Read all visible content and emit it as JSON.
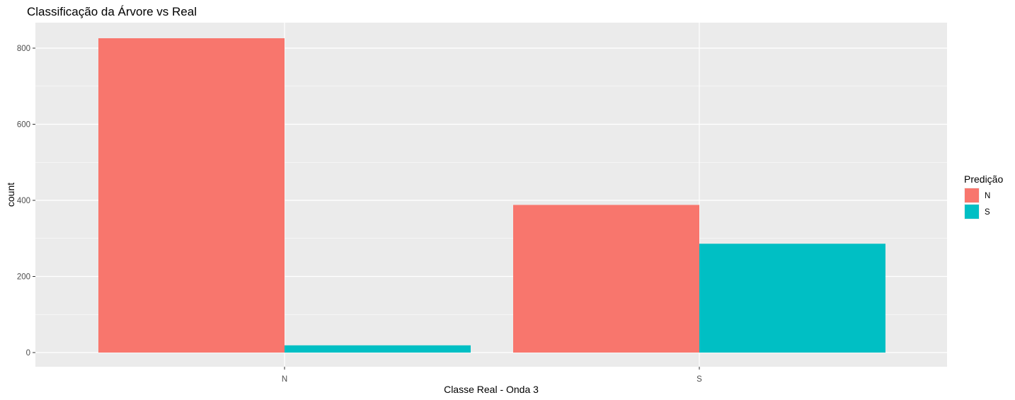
{
  "chart_data": {
    "type": "bar",
    "title": "Classificação da Árvore vs Real",
    "xlabel": "Classe Real - Onda 3",
    "ylabel": "count",
    "categories": [
      "N",
      "S"
    ],
    "series": [
      {
        "name": "N",
        "color": "#F8766D",
        "values": [
          826,
          388
        ]
      },
      {
        "name": "S",
        "color": "#00BFC4",
        "values": [
          19,
          286
        ]
      }
    ],
    "ylim": [
      0,
      800
    ],
    "yticks": [
      0,
      200,
      400,
      600,
      800
    ],
    "grid": true,
    "legend": {
      "title": "Predição",
      "position": "right"
    },
    "colors": {
      "panel": "#EBEBEB",
      "grid": "#FFFFFF"
    }
  }
}
